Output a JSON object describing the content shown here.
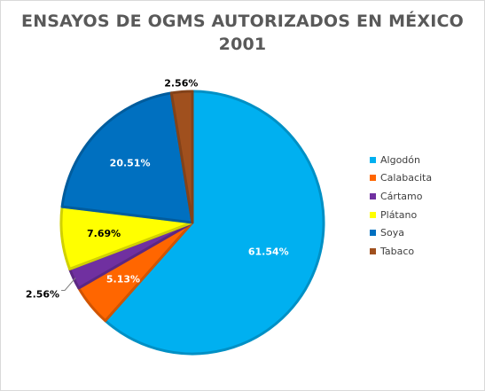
{
  "chart_data": {
    "type": "pie",
    "title": "ENSAYOS DE OGMS AUTORIZADOS EN MÉXICO",
    "subtitle": "2001",
    "categories": [
      "Algodón",
      "Calabacita",
      "Cártamo",
      "Plátano",
      "Soya",
      "Tabaco"
    ],
    "values": [
      61.54,
      5.13,
      2.56,
      7.69,
      20.51,
      2.56
    ],
    "data_labels": [
      "61.54%",
      "5.13%",
      "2.56%",
      "7.69%",
      "20.51%",
      "2.56%"
    ],
    "colors": [
      "#00b0f0",
      "#ff6600",
      "#7030a0",
      "#ffff00",
      "#0070c0",
      "#a0501e"
    ],
    "label_colors": [
      "#ffffff",
      "#ffffff",
      "#000000",
      "#000000",
      "#ffffff",
      "#000000"
    ],
    "legend_position": "right",
    "start_angle_deg": 0,
    "direction": "clockwise"
  }
}
